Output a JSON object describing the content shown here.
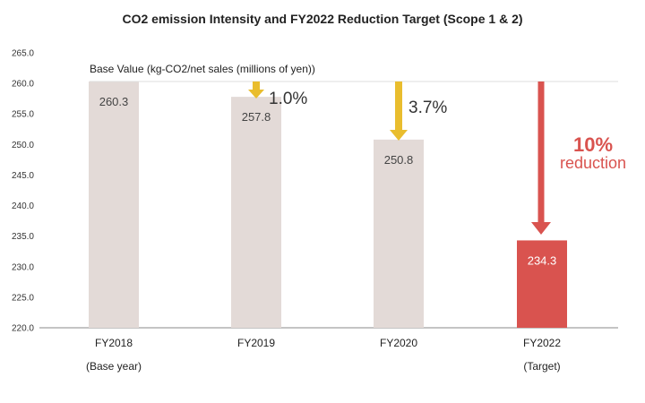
{
  "colors": {
    "base_bar": "#e3dad7",
    "target_bar": "#d9534f",
    "arrow_yellow": "#e9bd2e",
    "arrow_red": "#d9534f",
    "accent_red_text": "#d9534f",
    "axis_line": "#888888",
    "grid_line": "#dddddd"
  },
  "chart_data": {
    "type": "bar",
    "title": "CO2 emission Intensity and FY2022 Reduction Target (Scope 1 & 2)",
    "subtitle": "Base Value (kg-CO2/net sales (millions of yen))",
    "categories": [
      "FY2018",
      "FY2019",
      "FY2020",
      "FY2022"
    ],
    "category_sublabels": [
      "(Base year)",
      "",
      "",
      "(Target)"
    ],
    "values": [
      260.3,
      257.8,
      250.8,
      234.3
    ],
    "value_labels": [
      "260.3",
      "257.8",
      "250.8",
      "234.3"
    ],
    "ylim": [
      220,
      265
    ],
    "yticks": [
      "220.0",
      "225.0",
      "230.0",
      "235.0",
      "240.0",
      "245.0",
      "250.0",
      "255.0",
      "260.0",
      "265.0"
    ],
    "ytick_values": [
      220,
      225,
      230,
      235,
      240,
      245,
      250,
      255,
      260,
      265
    ],
    "grid": false,
    "annotations": [
      {
        "category": "FY2019",
        "text": "1.0%",
        "arrow_color": "yellow"
      },
      {
        "category": "FY2020",
        "text": "3.7%",
        "arrow_color": "yellow"
      },
      {
        "category": "FY2022",
        "text": "10%",
        "subtext": "reduction",
        "arrow_color": "red"
      }
    ]
  }
}
